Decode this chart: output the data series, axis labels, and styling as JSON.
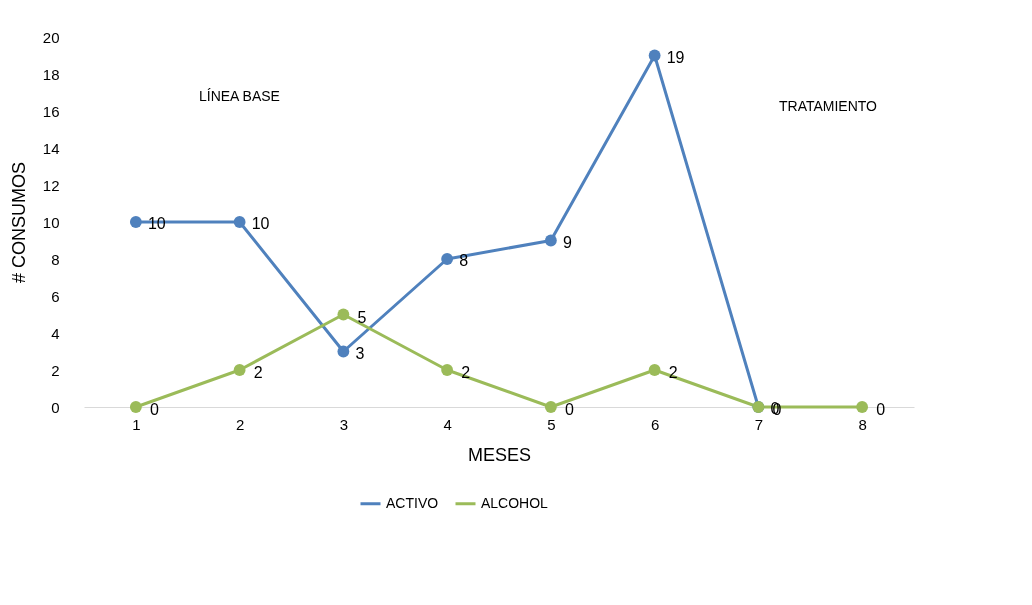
{
  "chart_data": {
    "type": "line",
    "xlabel": "MESES",
    "ylabel": "# CONSUMOS",
    "categories": [
      "1",
      "2",
      "3",
      "4",
      "5",
      "6",
      "7",
      "8"
    ],
    "series": [
      {
        "name": "ACTIVO",
        "color": "#4f81bd",
        "values": [
          10,
          10,
          3,
          8,
          9,
          19,
          0,
          null
        ]
      },
      {
        "name": "ALCOHOL",
        "color": "#9bbb59",
        "values": [
          0,
          2,
          5,
          2,
          0,
          2,
          0,
          0
        ]
      }
    ],
    "ylim": [
      0,
      20
    ],
    "yticks": [
      0,
      2,
      4,
      6,
      8,
      10,
      12,
      14,
      16,
      18,
      20
    ],
    "annotations": [
      "LÍNEA BASE",
      "TRATAMIENTO"
    ],
    "data_labels": true,
    "grid": false,
    "legend": "bottom",
    "marker": "circle",
    "line_style": "solid"
  }
}
